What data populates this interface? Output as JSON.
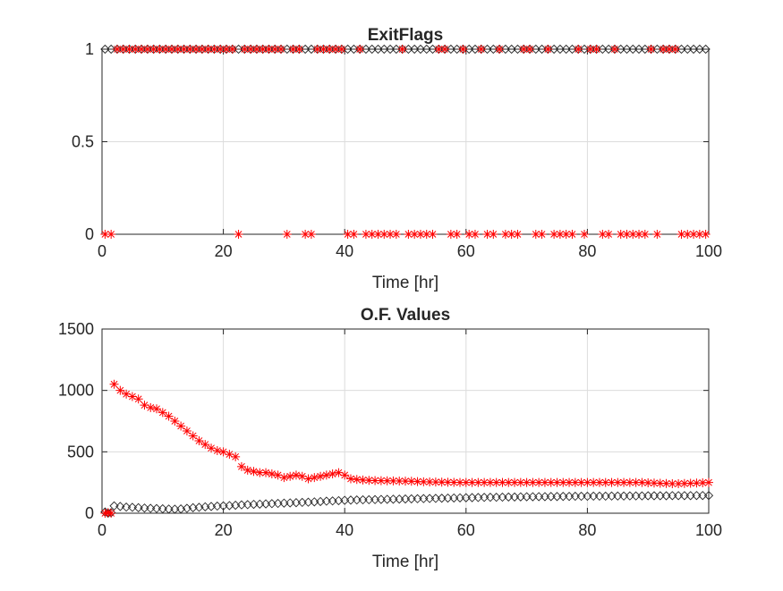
{
  "chart_data": [
    {
      "type": "scatter",
      "title": "ExitFlags",
      "xlabel": "Time [hr]",
      "ylabel": "",
      "xlim": [
        0,
        100
      ],
      "ylim": [
        0,
        1
      ],
      "xticks": [
        0,
        20,
        40,
        60,
        80,
        100
      ],
      "yticks": [
        0,
        0.5,
        1
      ],
      "xtick_labels": [
        "0",
        "20",
        "40",
        "60",
        "80",
        "100"
      ],
      "ytick_labels": [
        "0",
        "0.5",
        "1"
      ],
      "grid": true,
      "series": [
        {
          "marker": "diamond",
          "color": "#262626",
          "x": [
            0.5,
            1.5,
            2.5,
            3.5,
            4.5,
            5.5,
            6.5,
            7.5,
            8.5,
            9.5,
            10.5,
            11.5,
            12.5,
            13.5,
            14.5,
            15.5,
            16.5,
            17.5,
            18.5,
            19.5,
            20.5,
            21.5,
            22.5,
            23.5,
            24.5,
            25.5,
            26.5,
            27.5,
            28.5,
            29.5,
            30.5,
            31.5,
            32.5,
            33.5,
            34.5,
            35.5,
            36.5,
            37.5,
            38.5,
            39.5,
            40.5,
            41.5,
            42.5,
            43.5,
            44.5,
            45.5,
            46.5,
            47.5,
            48.5,
            49.5,
            50.5,
            51.5,
            52.5,
            53.5,
            54.5,
            55.5,
            56.5,
            57.5,
            58.5,
            59.5,
            60.5,
            61.5,
            62.5,
            63.5,
            64.5,
            65.5,
            66.5,
            67.5,
            68.5,
            69.5,
            70.5,
            71.5,
            72.5,
            73.5,
            74.5,
            75.5,
            76.5,
            77.5,
            78.5,
            79.5,
            80.5,
            81.5,
            82.5,
            83.5,
            84.5,
            85.5,
            86.5,
            87.5,
            88.5,
            89.5,
            90.5,
            91.5,
            92.5,
            93.5,
            94.5,
            95.5,
            96.5,
            97.5,
            98.5,
            99.5
          ],
          "y": [
            1,
            1,
            1,
            1,
            1,
            1,
            1,
            1,
            1,
            1,
            1,
            1,
            1,
            1,
            1,
            1,
            1,
            1,
            1,
            1,
            1,
            1,
            1,
            1,
            1,
            1,
            1,
            1,
            1,
            1,
            1,
            1,
            1,
            1,
            1,
            1,
            1,
            1,
            1,
            1,
            1,
            1,
            1,
            1,
            1,
            1,
            1,
            1,
            1,
            1,
            1,
            1,
            1,
            1,
            1,
            1,
            1,
            1,
            1,
            1,
            1,
            1,
            1,
            1,
            1,
            1,
            1,
            1,
            1,
            1,
            1,
            1,
            1,
            1,
            1,
            1,
            1,
            1,
            1,
            1,
            1,
            1,
            1,
            1,
            1,
            1,
            1,
            1,
            1,
            1,
            1,
            1,
            1,
            1,
            1,
            1,
            1,
            1,
            1,
            1
          ]
        },
        {
          "marker": "asterisk",
          "color": "#ff0000",
          "x": [
            0.5,
            1.5,
            2.5,
            3.5,
            4.5,
            5.5,
            6.5,
            7.5,
            8.5,
            9.5,
            10.5,
            11.5,
            12.5,
            13.5,
            14.5,
            15.5,
            16.5,
            17.5,
            18.5,
            19.5,
            20.5,
            21.5,
            22.5,
            23.5,
            24.5,
            25.5,
            26.5,
            27.5,
            28.5,
            29.5,
            30.5,
            31.5,
            32.5,
            33.5,
            34.5,
            35.5,
            36.5,
            37.5,
            38.5,
            39.5,
            40.5,
            41.5,
            42.5,
            43.5,
            44.5,
            45.5,
            46.5,
            47.5,
            48.5,
            49.5,
            50.5,
            51.5,
            52.5,
            53.5,
            54.5,
            55.5,
            56.5,
            57.5,
            58.5,
            59.5,
            60.5,
            61.5,
            62.5,
            63.5,
            64.5,
            65.5,
            66.5,
            67.5,
            68.5,
            69.5,
            70.5,
            71.5,
            72.5,
            73.5,
            74.5,
            75.5,
            76.5,
            77.5,
            78.5,
            79.5,
            80.5,
            81.5,
            82.5,
            83.5,
            84.5,
            85.5,
            86.5,
            87.5,
            88.5,
            89.5,
            90.5,
            91.5,
            92.5,
            93.5,
            94.5,
            95.5,
            96.5,
            97.5,
            98.5,
            99.5
          ],
          "y": [
            0,
            0,
            1,
            1,
            1,
            1,
            1,
            1,
            1,
            1,
            1,
            1,
            1,
            1,
            1,
            1,
            1,
            1,
            1,
            1,
            1,
            1,
            0,
            1,
            1,
            1,
            1,
            1,
            1,
            1,
            0,
            1,
            1,
            0,
            0,
            1,
            1,
            1,
            1,
            1,
            0,
            0,
            1,
            0,
            0,
            0,
            0,
            0,
            0,
            1,
            0,
            0,
            0,
            0,
            0,
            1,
            1,
            0,
            0,
            1,
            0,
            0,
            1,
            0,
            0,
            1,
            0,
            0,
            0,
            1,
            1,
            0,
            0,
            1,
            0,
            0,
            0,
            0,
            1,
            0,
            1,
            1,
            0,
            0,
            1,
            0,
            0,
            0,
            0,
            0,
            1,
            0,
            1,
            1,
            1,
            0,
            0,
            0,
            0,
            0
          ]
        }
      ]
    },
    {
      "type": "scatter",
      "title": "O.F. Values",
      "xlabel": "Time [hr]",
      "ylabel": "",
      "xlim": [
        0,
        100
      ],
      "ylim": [
        0,
        1500
      ],
      "xticks": [
        0,
        20,
        40,
        60,
        80,
        100
      ],
      "yticks": [
        0,
        500,
        1000,
        1500
      ],
      "xtick_labels": [
        "0",
        "20",
        "40",
        "60",
        "80",
        "100"
      ],
      "ytick_labels": [
        "0",
        "500",
        "1000",
        "1500"
      ],
      "grid": true,
      "series": [
        {
          "marker": "diamond",
          "color": "#262626",
          "x": [
            0.5,
            1,
            1.5,
            2,
            3,
            4,
            5,
            6,
            7,
            8,
            9,
            10,
            11,
            12,
            13,
            14,
            15,
            16,
            17,
            18,
            19,
            20,
            21,
            22,
            23,
            24,
            25,
            26,
            27,
            28,
            29,
            30,
            31,
            32,
            33,
            34,
            35,
            36,
            37,
            38,
            39,
            40,
            41,
            42,
            43,
            44,
            45,
            46,
            47,
            48,
            49,
            50,
            51,
            52,
            53,
            54,
            55,
            56,
            57,
            58,
            59,
            60,
            61,
            62,
            63,
            64,
            65,
            66,
            67,
            68,
            69,
            70,
            71,
            72,
            73,
            74,
            75,
            76,
            77,
            78,
            79,
            80,
            81,
            82,
            83,
            84,
            85,
            86,
            87,
            88,
            89,
            90,
            91,
            92,
            93,
            94,
            95,
            96,
            97,
            98,
            99,
            100
          ],
          "y": [
            10,
            0,
            5,
            60,
            55,
            50,
            48,
            45,
            42,
            40,
            38,
            36,
            34,
            33,
            35,
            40,
            45,
            48,
            52,
            55,
            58,
            60,
            62,
            65,
            68,
            70,
            72,
            74,
            76,
            78,
            80,
            82,
            84,
            86,
            88,
            90,
            92,
            95,
            98,
            100,
            102,
            105,
            107,
            108,
            109,
            110,
            111,
            112,
            113,
            114,
            115,
            116,
            117,
            118,
            119,
            120,
            121,
            122,
            123,
            124,
            125,
            126,
            127,
            128,
            129,
            130,
            130,
            131,
            132,
            132,
            133,
            134,
            134,
            135,
            135,
            136,
            136,
            137,
            137,
            138,
            138,
            138,
            139,
            139,
            139,
            140,
            140,
            140,
            141,
            141,
            141,
            142,
            142,
            142,
            142,
            143,
            143,
            143,
            143,
            144,
            144,
            144
          ]
        },
        {
          "marker": "asterisk",
          "color": "#ff0000",
          "x": [
            0.5,
            1,
            1.5,
            2,
            3,
            4,
            5,
            6,
            7,
            8,
            9,
            10,
            11,
            12,
            13,
            14,
            15,
            16,
            17,
            18,
            19,
            20,
            21,
            22,
            23,
            24,
            25,
            26,
            27,
            28,
            29,
            30,
            31,
            32,
            33,
            34,
            35,
            36,
            37,
            38,
            39,
            40,
            41,
            42,
            43,
            44,
            45,
            46,
            47,
            48,
            49,
            50,
            51,
            52,
            53,
            54,
            55,
            56,
            57,
            58,
            59,
            60,
            61,
            62,
            63,
            64,
            65,
            66,
            67,
            68,
            69,
            70,
            71,
            72,
            73,
            74,
            75,
            76,
            77,
            78,
            79,
            80,
            81,
            82,
            83,
            84,
            85,
            86,
            87,
            88,
            89,
            90,
            91,
            92,
            93,
            94,
            95,
            96,
            97,
            98,
            99,
            100
          ],
          "y": [
            0,
            5,
            0,
            1050,
            1000,
            970,
            950,
            930,
            880,
            860,
            850,
            820,
            790,
            750,
            710,
            670,
            630,
            590,
            560,
            530,
            510,
            500,
            480,
            460,
            380,
            350,
            340,
            330,
            330,
            320,
            310,
            290,
            300,
            310,
            300,
            280,
            290,
            300,
            310,
            320,
            330,
            310,
            280,
            275,
            270,
            268,
            266,
            265,
            264,
            263,
            262,
            261,
            260,
            258,
            256,
            255,
            254,
            253,
            252,
            251,
            250,
            250,
            250,
            250,
            250,
            250,
            250,
            250,
            250,
            250,
            250,
            250,
            250,
            250,
            250,
            250,
            250,
            250,
            250,
            250,
            250,
            250,
            250,
            250,
            250,
            250,
            250,
            250,
            250,
            250,
            250,
            248,
            246,
            244,
            242,
            240,
            240,
            242,
            244,
            246,
            248,
            250
          ]
        }
      ]
    }
  ]
}
